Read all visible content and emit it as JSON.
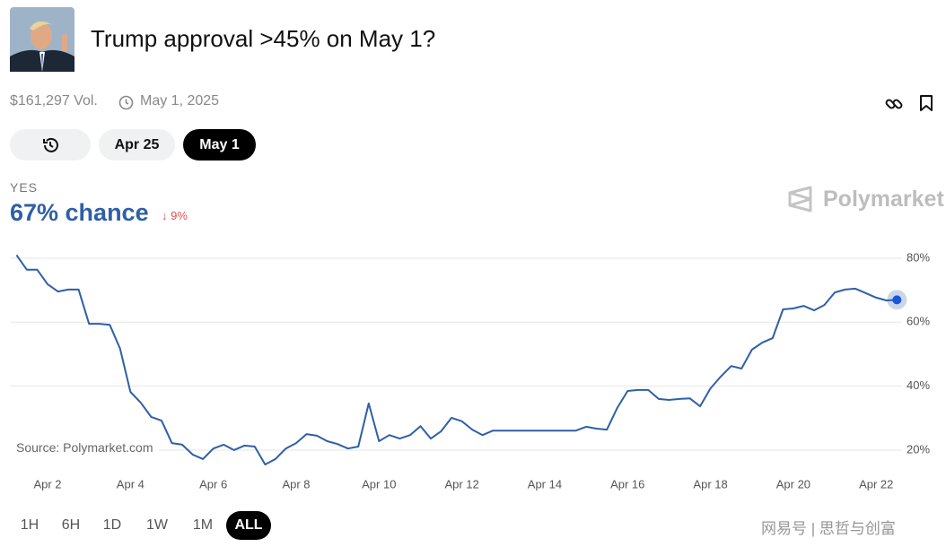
{
  "header": {
    "title": "Trump approval >45% on May 1?",
    "volume": "$161,297 Vol.",
    "end_date": "May 1, 2025"
  },
  "date_tabs": [
    "Apr 25",
    "May 1"
  ],
  "outcome": {
    "label": "YES",
    "chance": "67% chance",
    "change": "9%"
  },
  "brand": "Polymarket",
  "source": "Source: Polymarket.com",
  "ranges": [
    "1H",
    "6H",
    "1D",
    "1W",
    "1M",
    "ALL"
  ],
  "watermark": "网易号 | 思哲与创富",
  "chart_data": {
    "type": "line",
    "color": "#2f5fa7",
    "grid": true,
    "categories": [
      null,
      null,
      null,
      "Apr 2",
      null,
      null,
      null,
      null,
      null,
      null,
      null,
      "Apr 4",
      null,
      null,
      null,
      null,
      null,
      null,
      null,
      "Apr 6",
      null,
      null,
      null,
      null,
      null,
      null,
      null,
      "Apr 8",
      null,
      null,
      null,
      null,
      null,
      null,
      null,
      "Apr 10",
      null,
      null,
      null,
      null,
      null,
      null,
      null,
      "Apr 12",
      null,
      null,
      null,
      null,
      null,
      null,
      null,
      "Apr 14",
      null,
      null,
      null,
      null,
      null,
      null,
      null,
      "Apr 16",
      null,
      null,
      null,
      null,
      null,
      null,
      null,
      "Apr 18",
      null,
      null,
      null,
      null,
      null,
      null,
      null,
      "Apr 20",
      null,
      null,
      null,
      null,
      null,
      null,
      null,
      "Apr 22",
      null,
      null
    ],
    "values": [
      81,
      76.4,
      76.4,
      71.9,
      69.6,
      70.2,
      70.2,
      59.5,
      59.5,
      59.2,
      51.7,
      38.2,
      34.8,
      30.4,
      29.2,
      22.2,
      21.7,
      18.6,
      17.2,
      20.5,
      21.7,
      20,
      21.4,
      21.1,
      15.5,
      17.2,
      20.5,
      22.2,
      25,
      24.5,
      22.8,
      21.9,
      20.5,
      21.1,
      34.6,
      22.8,
      24.7,
      23.6,
      24.7,
      27.5,
      23.6,
      25.9,
      30.1,
      29,
      26.4,
      24.7,
      26.1,
      26.1,
      26.1,
      26.1,
      26.1,
      26.1,
      26.1,
      26.1,
      26.1,
      27.3,
      26.7,
      26.4,
      33.2,
      38.5,
      38.8,
      38.8,
      36,
      35.7,
      36,
      36.2,
      33.7,
      39.3,
      43,
      46.3,
      45.5,
      51.4,
      53.6,
      55,
      64,
      64.3,
      65.1,
      63.7,
      65.4,
      69.3,
      70.2,
      70.5,
      69.1,
      67.7,
      66.8,
      67
    ],
    "ylim": [
      13,
      86
    ],
    "yticks": [
      {
        "value": 20,
        "label": "20%"
      },
      {
        "value": 40,
        "label": "40%"
      },
      {
        "value": 60,
        "label": "60%"
      },
      {
        "value": 80,
        "label": "80%"
      }
    ]
  }
}
